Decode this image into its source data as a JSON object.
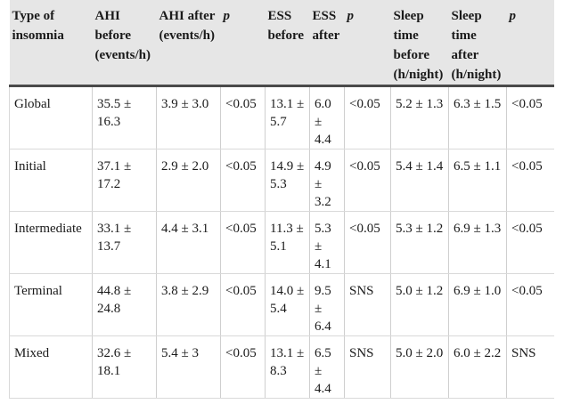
{
  "headers": [
    "Type of insomnia",
    "AHI before (events/h)",
    "AHI after (events/h)",
    "p",
    "ESS before",
    "ESS after",
    "p",
    "Sleep time before (h/night)",
    "Sleep time after (h/night)",
    "p"
  ],
  "rows": [
    [
      "Global",
      "35.5 ± 16.3",
      "3.9 ± 3.0",
      "<0.05",
      "13.1 ± 5.7",
      "6.0 ± 4.4",
      "<0.05",
      "5.2 ± 1.3",
      "6.3 ± 1.5",
      "<0.05"
    ],
    [
      "Initial",
      "37.1 ± 17.2",
      "2.9 ± 2.0",
      "<0.05",
      "14.9 ± 5.3",
      "4.9 ± 3.2",
      "<0.05",
      "5.4 ± 1.4",
      "6.5 ± 1.1",
      "<0.05"
    ],
    [
      "Intermediate",
      "33.1 ± 13.7",
      "4.4 ± 3.1",
      "<0.05",
      "11.3 ± 5.1",
      "5.3 ± 4.1",
      "<0.05",
      "5.3 ± 1.2",
      "6.9 ± 1.3",
      "<0.05"
    ],
    [
      "Terminal",
      "44.8 ± 24.8",
      "3.8 ± 2.9",
      "<0.05",
      "14.0 ± 5.4",
      "9.5 ± 6.4",
      "SNS",
      "5.0 ± 1.2",
      "6.9 ± 1.0",
      "<0.05"
    ],
    [
      "Mixed",
      "32.6 ± 18.1",
      "5.4 ± 3",
      "<0.05",
      "13.1 ± 8.3",
      "6.5 ± 4.4",
      "SNS",
      "5.0 ± 2.0",
      "6.0 ± 2.2",
      "SNS"
    ]
  ]
}
